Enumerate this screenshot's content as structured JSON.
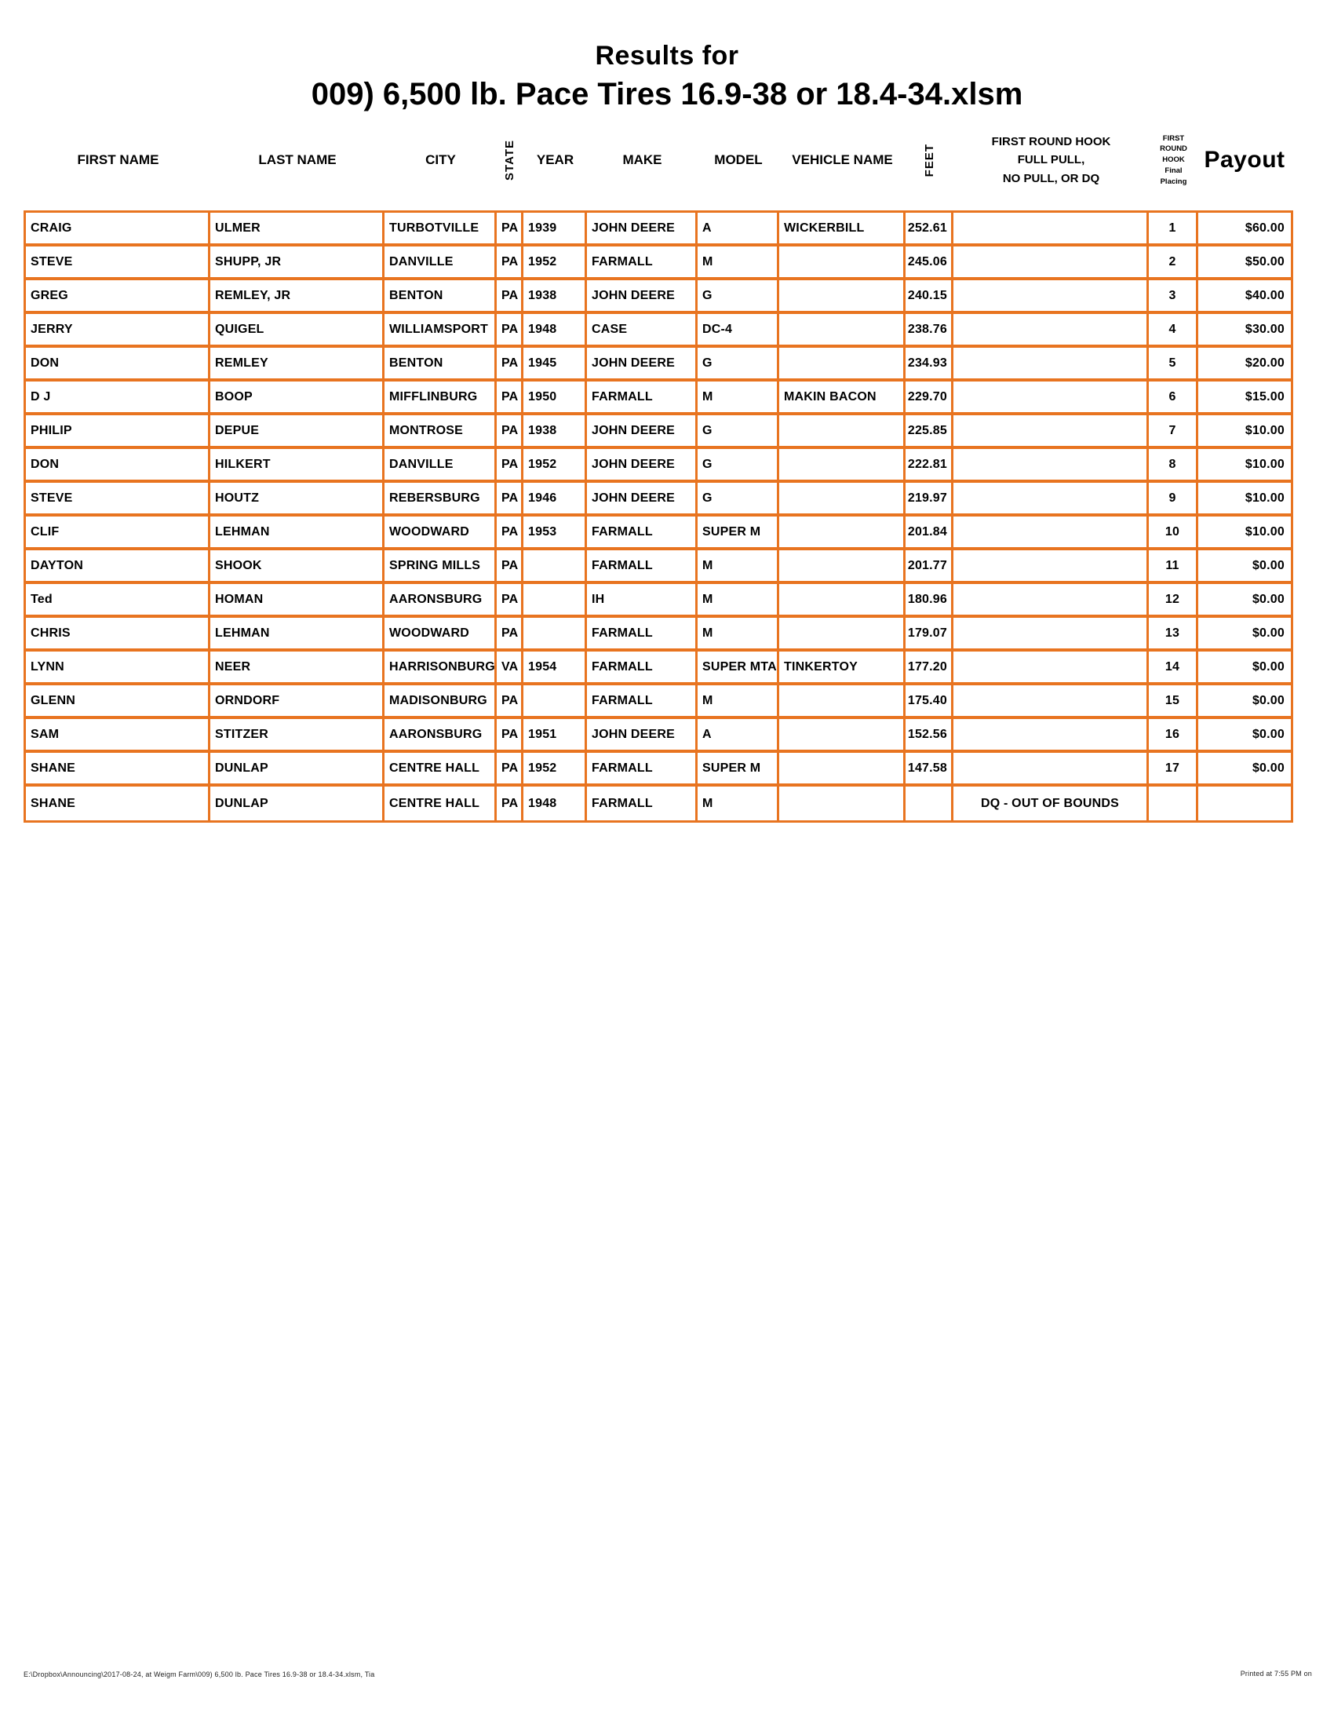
{
  "page": {
    "title_line1": "Results for",
    "title_line2": "009) 6,500 lb. Pace Tires 16.9-38 or 18.4-34.xlsm",
    "footer_left": "E:\\Dropbox\\Announcing\\2017-08-24, at Weigm Farm\\009) 6,500 lb. Pace Tires 16.9-38 or 18.4-34.xlsm, Tia",
    "footer_right": "Printed at 7:55 PM on"
  },
  "colors": {
    "border": "#e87420",
    "text": "#000000"
  },
  "table": {
    "headers": {
      "first": "FIRST NAME",
      "last": "LAST NAME",
      "city": "CITY",
      "state": "STATE",
      "year": "YEAR",
      "make": "MAKE",
      "model": "MODEL",
      "vehicle": "VEHICLE NAME",
      "feet": "FEET",
      "hook": "FIRST ROUND HOOK\nFULL PULL,\nNO PULL, OR DQ",
      "placing": "FIRST\nROUND\nHOOK\nFinal\nPlacing",
      "payout": "Payout"
    },
    "rows": [
      {
        "first": "CRAIG",
        "last": "ULMER",
        "city": "TURBOTVILLE",
        "state": "PA",
        "year": "1939",
        "make": "JOHN DEERE",
        "model": "A",
        "vehicle": "WICKERBILL",
        "feet": "252.61",
        "hook": "",
        "placing": "1",
        "payout": "$60.00"
      },
      {
        "first": "STEVE",
        "last": "SHUPP, JR",
        "city": "DANVILLE",
        "state": "PA",
        "year": "1952",
        "make": "FARMALL",
        "model": "M",
        "vehicle": "",
        "feet": "245.06",
        "hook": "",
        "placing": "2",
        "payout": "$50.00"
      },
      {
        "first": "GREG",
        "last": "REMLEY, JR",
        "city": "BENTON",
        "state": "PA",
        "year": "1938",
        "make": "JOHN DEERE",
        "model": "G",
        "vehicle": "",
        "feet": "240.15",
        "hook": "",
        "placing": "3",
        "payout": "$40.00"
      },
      {
        "first": "JERRY",
        "last": "QUIGEL",
        "city": "WILLIAMSPORT",
        "state": "PA",
        "year": "1948",
        "make": "CASE",
        "model": "DC-4",
        "vehicle": "",
        "feet": "238.76",
        "hook": "",
        "placing": "4",
        "payout": "$30.00"
      },
      {
        "first": "DON",
        "last": "REMLEY",
        "city": "BENTON",
        "state": "PA",
        "year": "1945",
        "make": "JOHN DEERE",
        "model": "G",
        "vehicle": "",
        "feet": "234.93",
        "hook": "",
        "placing": "5",
        "payout": "$20.00"
      },
      {
        "first": "D J",
        "last": "BOOP",
        "city": "MIFFLINBURG",
        "state": "PA",
        "year": "1950",
        "make": "FARMALL",
        "model": "M",
        "vehicle": "MAKIN BACON",
        "feet": "229.70",
        "hook": "",
        "placing": "6",
        "payout": "$15.00"
      },
      {
        "first": "PHILIP",
        "last": "DEPUE",
        "city": "MONTROSE",
        "state": "PA",
        "year": "1938",
        "make": "JOHN DEERE",
        "model": "G",
        "vehicle": "",
        "feet": "225.85",
        "hook": "",
        "placing": "7",
        "payout": "$10.00"
      },
      {
        "first": "DON",
        "last": "HILKERT",
        "city": "DANVILLE",
        "state": "PA",
        "year": "1952",
        "make": "JOHN DEERE",
        "model": "G",
        "vehicle": "",
        "feet": "222.81",
        "hook": "",
        "placing": "8",
        "payout": "$10.00"
      },
      {
        "first": "STEVE",
        "last": "HOUTZ",
        "city": "REBERSBURG",
        "state": "PA",
        "year": "1946",
        "make": "JOHN DEERE",
        "model": "G",
        "vehicle": "",
        "feet": "219.97",
        "hook": "",
        "placing": "9",
        "payout": "$10.00"
      },
      {
        "first": "CLIF",
        "last": "LEHMAN",
        "city": "WOODWARD",
        "state": "PA",
        "year": "1953",
        "make": "FARMALL",
        "model": "SUPER M",
        "vehicle": "",
        "feet": "201.84",
        "hook": "",
        "placing": "10",
        "payout": "$10.00"
      },
      {
        "first": "DAYTON",
        "last": "SHOOK",
        "city": "SPRING MILLS",
        "state": "PA",
        "year": "",
        "make": "FARMALL",
        "model": "M",
        "vehicle": "",
        "feet": "201.77",
        "hook": "",
        "placing": "11",
        "payout": "$0.00"
      },
      {
        "first": "Ted",
        "last": "HOMAN",
        "city": "AARONSBURG",
        "state": "PA",
        "year": "",
        "make": "IH",
        "model": "M",
        "vehicle": "",
        "feet": "180.96",
        "hook": "",
        "placing": "12",
        "payout": "$0.00"
      },
      {
        "first": "CHRIS",
        "last": "LEHMAN",
        "city": "WOODWARD",
        "state": "PA",
        "year": "",
        "make": "FARMALL",
        "model": "M",
        "vehicle": "",
        "feet": "179.07",
        "hook": "",
        "placing": "13",
        "payout": "$0.00"
      },
      {
        "first": "LYNN",
        "last": "NEER",
        "city": "HARRISONBURG",
        "state": "VA",
        "year": "1954",
        "make": "FARMALL",
        "model": "SUPER MTA",
        "vehicle": "TINKERTOY",
        "feet": "177.20",
        "hook": "",
        "placing": "14",
        "payout": "$0.00"
      },
      {
        "first": "GLENN",
        "last": "ORNDORF",
        "city": "MADISONBURG",
        "state": "PA",
        "year": "",
        "make": "FARMALL",
        "model": "M",
        "vehicle": "",
        "feet": "175.40",
        "hook": "",
        "placing": "15",
        "payout": "$0.00"
      },
      {
        "first": "SAM",
        "last": "STITZER",
        "city": "AARONSBURG",
        "state": "PA",
        "year": "1951",
        "make": "JOHN DEERE",
        "model": "A",
        "vehicle": "",
        "feet": "152.56",
        "hook": "",
        "placing": "16",
        "payout": "$0.00"
      },
      {
        "first": "SHANE",
        "last": "DUNLAP",
        "city": "CENTRE HALL",
        "state": "PA",
        "year": "1952",
        "make": "FARMALL",
        "model": "SUPER M",
        "vehicle": "",
        "feet": "147.58",
        "hook": "",
        "placing": "17",
        "payout": "$0.00"
      },
      {
        "first": "SHANE",
        "last": "DUNLAP",
        "city": "CENTRE HALL",
        "state": "PA",
        "year": "1948",
        "make": "FARMALL",
        "model": "M",
        "vehicle": "",
        "feet": "",
        "hook": "DQ - OUT OF BOUNDS",
        "placing": "",
        "payout": ""
      }
    ]
  }
}
